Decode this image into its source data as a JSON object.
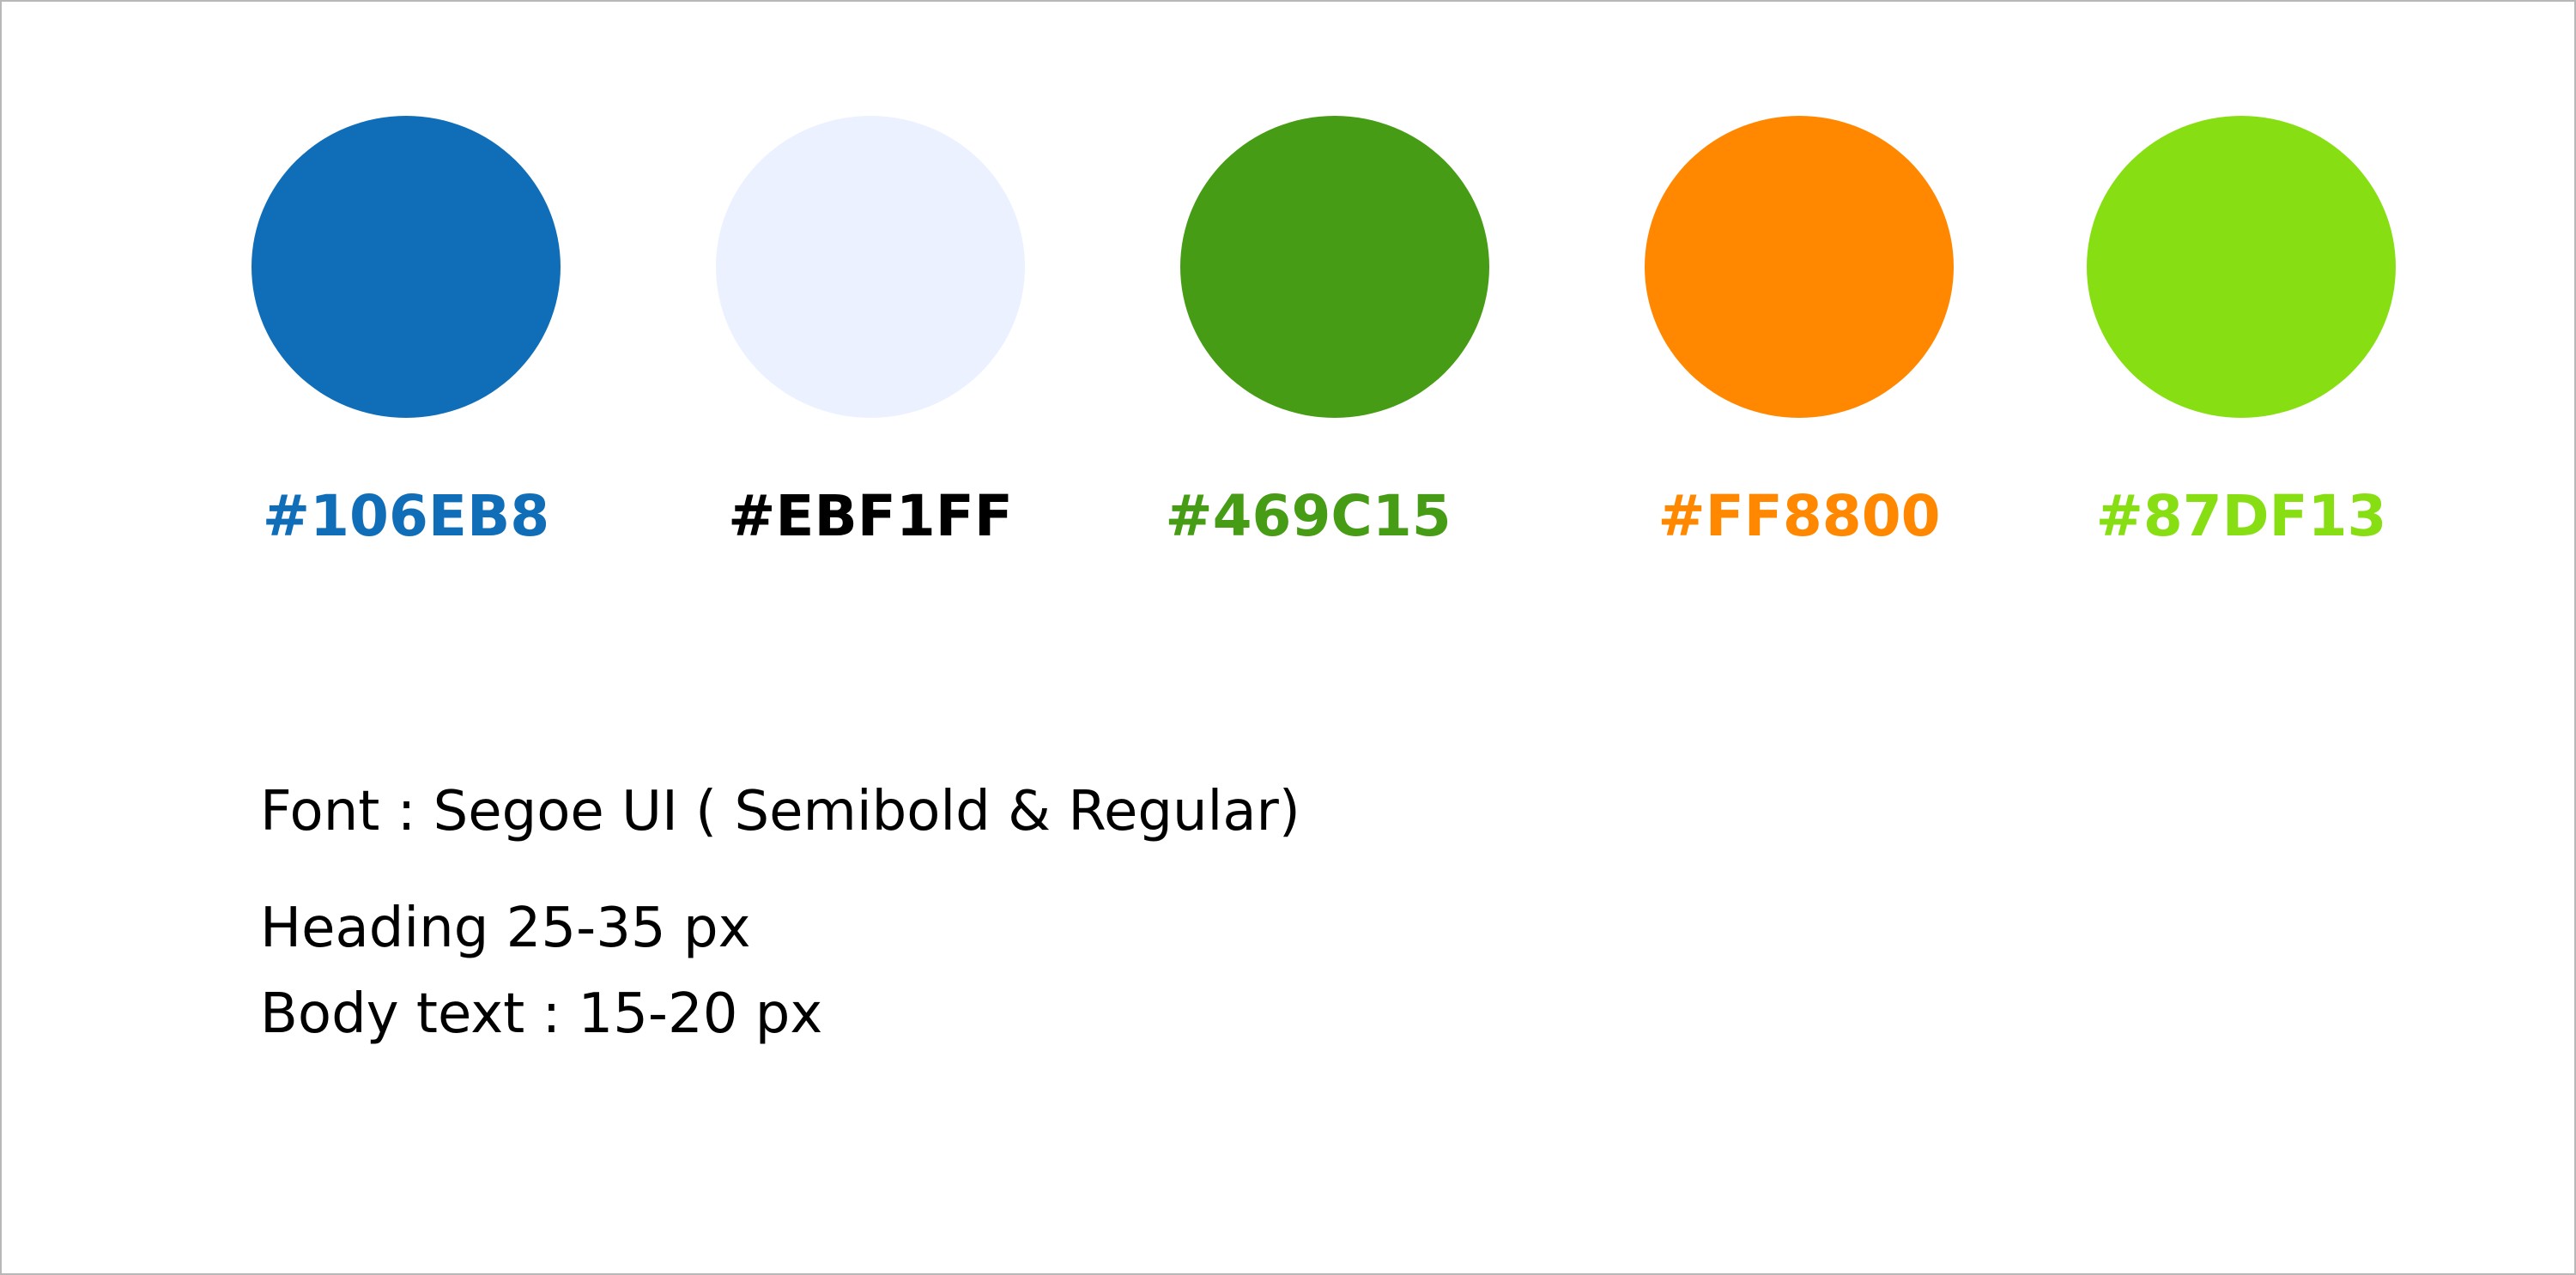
{
  "palette": [
    {
      "hex": "#106EB8",
      "color": "#106EB8",
      "label_color": "#106EB8"
    },
    {
      "hex": "#EBF1FF",
      "color": "#EBF1FF",
      "label_color": "#000000"
    },
    {
      "hex": "#469C15",
      "color": "#469C15",
      "label_color": "#469C15"
    },
    {
      "hex": "#FF8800",
      "color": "#FF8800",
      "label_color": "#FF8800"
    },
    {
      "hex": "#87DF13",
      "color": "#87DF13",
      "label_color": "#87DF13"
    }
  ],
  "typography": {
    "font_line": "Font : Segoe UI ( Semibold & Regular)",
    "heading_line": "Heading 25-35 px",
    "body_line": "Body text : 15-20 px"
  }
}
